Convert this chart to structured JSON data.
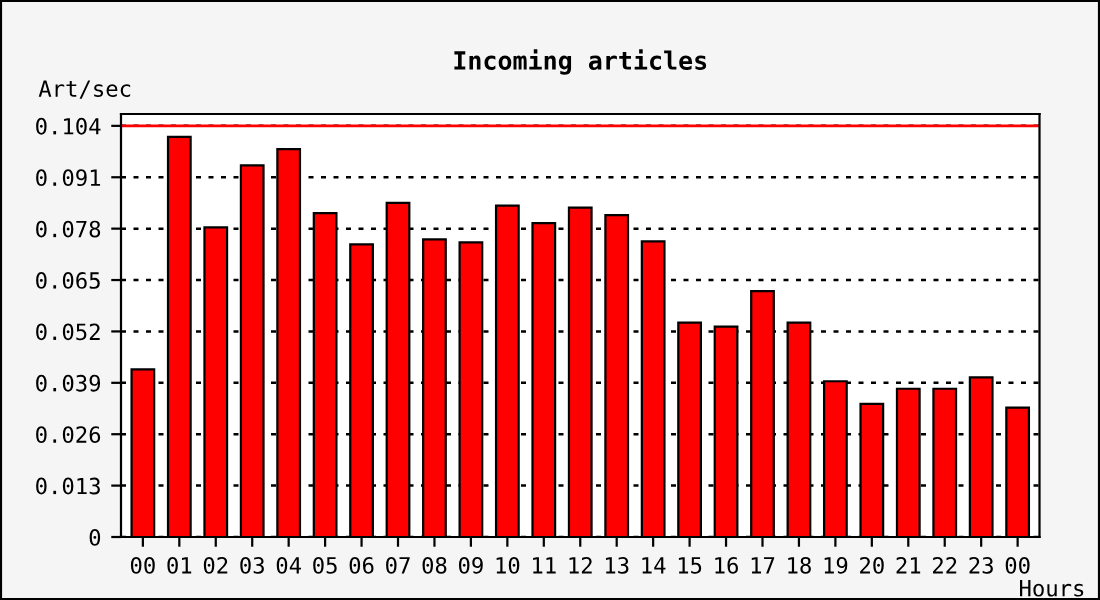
{
  "chart_data": {
    "type": "bar",
    "title": "Incoming articles",
    "ylabel": "Art/sec",
    "xlabel": "Hours",
    "categories": [
      "00",
      "01",
      "02",
      "03",
      "04",
      "05",
      "06",
      "07",
      "08",
      "09",
      "10",
      "11",
      "12",
      "13",
      "14",
      "15",
      "16",
      "17",
      "18",
      "19",
      "20",
      "21",
      "22",
      "23",
      "00"
    ],
    "values": [
      0.0424,
      0.1012,
      0.0783,
      0.094,
      0.0981,
      0.0819,
      0.074,
      0.0845,
      0.0753,
      0.0745,
      0.0838,
      0.0794,
      0.0833,
      0.0814,
      0.0748,
      0.0542,
      0.0532,
      0.0622,
      0.0542,
      0.0394,
      0.0337,
      0.0375,
      0.0375,
      0.0404,
      0.0327
    ],
    "color": "#ff0000",
    "ylim": [
      0,
      0.107
    ],
    "yticks": [
      0,
      0.013,
      0.026,
      0.039,
      0.052,
      0.065,
      0.078,
      0.091,
      0.104
    ],
    "ref_lines": [
      {
        "axis": "y",
        "value": 0.104,
        "color": "#ff0000"
      }
    ],
    "grid": "y"
  }
}
